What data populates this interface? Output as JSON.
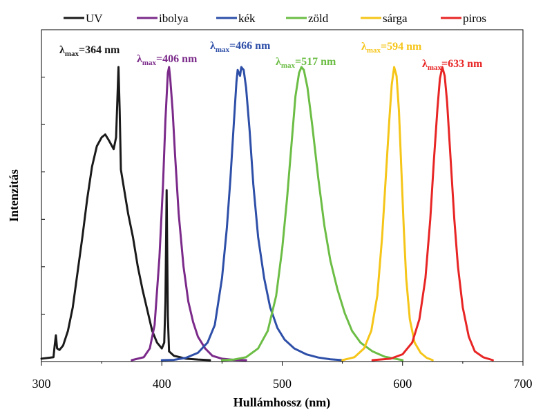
{
  "chart_data": {
    "type": "line",
    "xlabel": "Hullámhossz  (nm)",
    "ylabel": "Intenzitás",
    "xlim": [
      300,
      700
    ],
    "ylim": [
      0,
      1
    ],
    "x_ticks": [
      "300",
      "400",
      "500",
      "600",
      "700"
    ],
    "y_tick_labels": "none",
    "grid": false,
    "legend_position": "top",
    "series": [
      {
        "name": "UV",
        "color": "#1a1a1a",
        "peak_label": "364 nm",
        "points": [
          [
            300,
            0.005
          ],
          [
            310,
            0.01
          ],
          [
            311,
            0.05
          ],
          [
            312,
            0.085
          ],
          [
            313,
            0.04
          ],
          [
            315,
            0.035
          ],
          [
            318,
            0.05
          ],
          [
            322,
            0.1
          ],
          [
            326,
            0.18
          ],
          [
            330,
            0.3
          ],
          [
            334,
            0.42
          ],
          [
            338,
            0.55
          ],
          [
            342,
            0.66
          ],
          [
            346,
            0.73
          ],
          [
            350,
            0.76
          ],
          [
            353,
            0.77
          ],
          [
            356,
            0.75
          ],
          [
            360,
            0.72
          ],
          [
            362,
            0.76
          ],
          [
            363,
            0.88
          ],
          [
            364,
            1.0
          ],
          [
            365,
            0.85
          ],
          [
            366,
            0.65
          ],
          [
            368,
            0.6
          ],
          [
            372,
            0.5
          ],
          [
            376,
            0.42
          ],
          [
            380,
            0.32
          ],
          [
            384,
            0.24
          ],
          [
            388,
            0.17
          ],
          [
            392,
            0.1
          ],
          [
            396,
            0.06
          ],
          [
            400,
            0.04
          ],
          [
            402,
            0.06
          ],
          [
            403,
            0.2
          ],
          [
            404,
            0.58
          ],
          [
            405,
            0.15
          ],
          [
            406,
            0.03
          ],
          [
            410,
            0.015
          ],
          [
            420,
            0.005
          ],
          [
            430,
            0.002
          ],
          [
            440,
            0.0
          ]
        ]
      },
      {
        "name": "ibolya",
        "color": "#7b2a8a",
        "peak_label": "406 nm",
        "points": [
          [
            375,
            0.0
          ],
          [
            385,
            0.01
          ],
          [
            390,
            0.04
          ],
          [
            394,
            0.12
          ],
          [
            398,
            0.35
          ],
          [
            401,
            0.6
          ],
          [
            403,
            0.82
          ],
          [
            405,
            0.98
          ],
          [
            406,
            1.0
          ],
          [
            407,
            0.96
          ],
          [
            409,
            0.85
          ],
          [
            411,
            0.7
          ],
          [
            414,
            0.5
          ],
          [
            418,
            0.32
          ],
          [
            422,
            0.2
          ],
          [
            426,
            0.13
          ],
          [
            430,
            0.08
          ],
          [
            436,
            0.04
          ],
          [
            442,
            0.015
          ],
          [
            450,
            0.005
          ],
          [
            460,
            0.001
          ],
          [
            470,
            0.0
          ]
        ]
      },
      {
        "name": "kék",
        "color": "#2e4fa8",
        "peak_label": "466 nm",
        "points": [
          [
            400,
            0.0
          ],
          [
            410,
            0.001
          ],
          [
            420,
            0.008
          ],
          [
            430,
            0.025
          ],
          [
            438,
            0.06
          ],
          [
            444,
            0.12
          ],
          [
            450,
            0.28
          ],
          [
            454,
            0.45
          ],
          [
            457,
            0.62
          ],
          [
            460,
            0.82
          ],
          [
            462,
            0.95
          ],
          [
            463,
            0.99
          ],
          [
            465,
            0.97
          ],
          [
            466,
            1.0
          ],
          [
            468,
            0.99
          ],
          [
            470,
            0.93
          ],
          [
            473,
            0.78
          ],
          [
            476,
            0.6
          ],
          [
            480,
            0.42
          ],
          [
            485,
            0.28
          ],
          [
            490,
            0.18
          ],
          [
            496,
            0.11
          ],
          [
            502,
            0.07
          ],
          [
            510,
            0.04
          ],
          [
            520,
            0.02
          ],
          [
            530,
            0.009
          ],
          [
            540,
            0.003
          ],
          [
            550,
            0.0
          ]
        ]
      },
      {
        "name": "zöld",
        "color": "#6cbd45",
        "peak_label": "517 nm",
        "points": [
          [
            450,
            0.0
          ],
          [
            460,
            0.002
          ],
          [
            470,
            0.01
          ],
          [
            480,
            0.04
          ],
          [
            488,
            0.1
          ],
          [
            495,
            0.22
          ],
          [
            500,
            0.38
          ],
          [
            504,
            0.55
          ],
          [
            508,
            0.75
          ],
          [
            511,
            0.9
          ],
          [
            514,
            0.98
          ],
          [
            516,
            1.0
          ],
          [
            518,
            0.99
          ],
          [
            521,
            0.93
          ],
          [
            525,
            0.8
          ],
          [
            530,
            0.62
          ],
          [
            535,
            0.46
          ],
          [
            540,
            0.34
          ],
          [
            546,
            0.24
          ],
          [
            552,
            0.16
          ],
          [
            558,
            0.1
          ],
          [
            565,
            0.06
          ],
          [
            575,
            0.03
          ],
          [
            585,
            0.012
          ],
          [
            600,
            0.0
          ]
        ]
      },
      {
        "name": "sárga",
        "color": "#f5c518",
        "peak_label": "594 nm",
        "points": [
          [
            550,
            0.0
          ],
          [
            560,
            0.01
          ],
          [
            568,
            0.04
          ],
          [
            574,
            0.1
          ],
          [
            579,
            0.22
          ],
          [
            583,
            0.42
          ],
          [
            586,
            0.62
          ],
          [
            589,
            0.82
          ],
          [
            591,
            0.94
          ],
          [
            593,
            1.0
          ],
          [
            595,
            0.97
          ],
          [
            597,
            0.85
          ],
          [
            599,
            0.65
          ],
          [
            601,
            0.45
          ],
          [
            603,
            0.28
          ],
          [
            606,
            0.14
          ],
          [
            610,
            0.06
          ],
          [
            615,
            0.025
          ],
          [
            620,
            0.008
          ],
          [
            625,
            0.0
          ]
        ]
      },
      {
        "name": "piros",
        "color": "#e82525",
        "peak_label": "633 nm",
        "points": [
          [
            575,
            0.0
          ],
          [
            590,
            0.005
          ],
          [
            600,
            0.02
          ],
          [
            608,
            0.06
          ],
          [
            614,
            0.14
          ],
          [
            619,
            0.28
          ],
          [
            623,
            0.48
          ],
          [
            626,
            0.68
          ],
          [
            629,
            0.86
          ],
          [
            631,
            0.96
          ],
          [
            633,
            1.0
          ],
          [
            635,
            0.97
          ],
          [
            637,
            0.88
          ],
          [
            640,
            0.68
          ],
          [
            643,
            0.48
          ],
          [
            646,
            0.32
          ],
          [
            650,
            0.18
          ],
          [
            655,
            0.08
          ],
          [
            660,
            0.03
          ],
          [
            667,
            0.01
          ],
          [
            675,
            0.0
          ]
        ]
      }
    ]
  }
}
